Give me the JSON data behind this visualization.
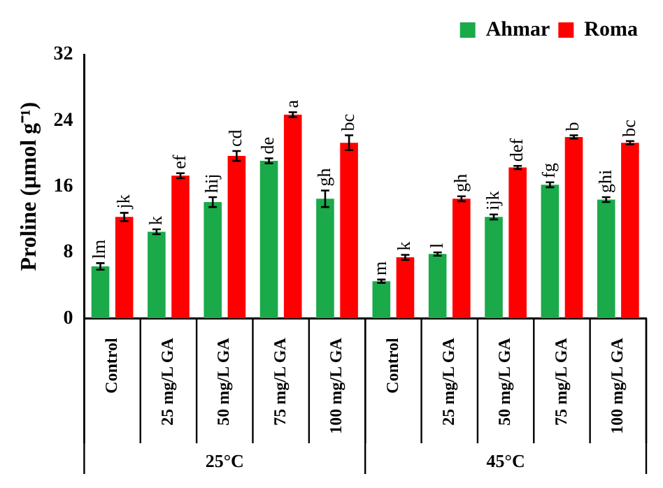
{
  "chart_data": {
    "type": "bar",
    "ylabel": "Proline (µmol g⁻¹)",
    "categories": [
      "Control",
      "25 mg/L GA",
      "50 mg/L GA",
      "75 mg/L GA",
      "100 mg/L GA",
      "Control",
      "25 mg/L GA",
      "50 mg/L GA",
      "75 mg/L GA",
      "100 mg/L GA"
    ],
    "series": [
      {
        "name": "Ahmar",
        "color": "#1aaa4a",
        "values": [
          6.3,
          10.5,
          14.1,
          19.1,
          14.5,
          4.5,
          7.8,
          12.3,
          16.2,
          14.4
        ],
        "errors": [
          0.4,
          0.3,
          0.6,
          0.3,
          1.0,
          0.2,
          0.2,
          0.3,
          0.3,
          0.3
        ],
        "value_labels": [
          "lm",
          "k",
          "hij",
          "de",
          "gh",
          "m",
          "l",
          "ijk",
          "fg",
          "ghi"
        ]
      },
      {
        "name": "Roma",
        "color": "#ff0000",
        "values": [
          12.3,
          17.3,
          19.7,
          24.7,
          21.3,
          7.4,
          14.5,
          18.3,
          22.0,
          21.3
        ],
        "errors": [
          0.5,
          0.3,
          0.6,
          0.3,
          0.9,
          0.3,
          0.3,
          0.2,
          0.2,
          0.2
        ],
        "value_labels": [
          "jk",
          "ef",
          "cd",
          "a",
          "bc",
          "k",
          "gh",
          "def",
          "b",
          "bc"
        ]
      }
    ],
    "annotations": [
      "25°C",
      "45°C"
    ],
    "ylim": [
      0,
      32
    ],
    "yticks": [
      0,
      8,
      16,
      24,
      32
    ],
    "legend": "top right"
  }
}
